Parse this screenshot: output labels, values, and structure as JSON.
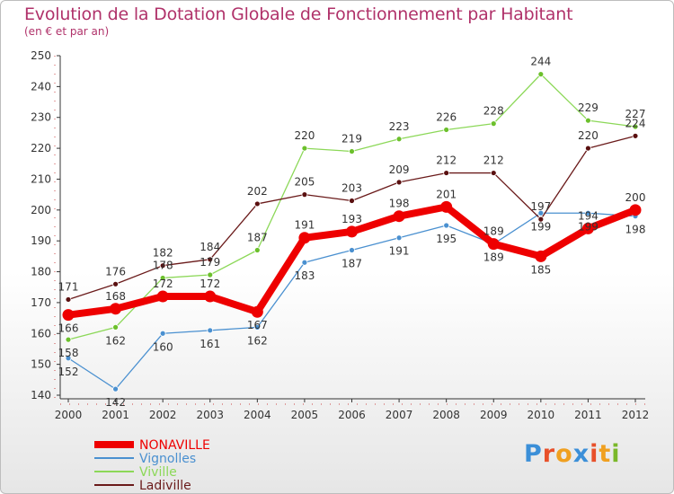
{
  "title": "Evolution de la Dotation Globale de Fonctionnement par Habitant",
  "subtitle": "(en € et par an)",
  "logo": {
    "text": "Proxiti",
    "letter_colors": [
      "#3b8fd8",
      "#e8502a",
      "#f0a020",
      "#3b8fd8",
      "#e8502a",
      "#f0a020",
      "#7ab82a"
    ]
  },
  "chart_data": {
    "type": "line",
    "title": "Evolution de la Dotation Globale de Fonctionnement par Habitant",
    "xlabel": "",
    "ylabel": "(en € et par an)",
    "x": [
      "2000",
      "2001",
      "2002",
      "2003",
      "2004",
      "2005",
      "2006",
      "2007",
      "2008",
      "2009",
      "2010",
      "2011",
      "2012"
    ],
    "ylim": [
      140,
      250
    ],
    "yticks": [
      "140",
      "150",
      "160",
      "170",
      "180",
      "190",
      "200",
      "210",
      "220",
      "230",
      "240",
      "250"
    ],
    "grid": false,
    "legend_position": "bottom-left",
    "series": [
      {
        "name": "NONAVILLE",
        "color": "#ee0000",
        "marker": "#ee0000",
        "bold": true,
        "values": [
          166,
          168,
          172,
          172,
          167,
          191,
          193,
          198,
          201,
          189,
          185,
          194,
          200
        ],
        "labels": [
          "166",
          "168",
          "172",
          "172",
          "167",
          "191",
          "193",
          "198",
          "201",
          "189",
          "185",
          "194",
          "200"
        ]
      },
      {
        "name": "Vignolles",
        "color": "#4a90d0",
        "marker": "#4a90d0",
        "bold": false,
        "values": [
          152,
          142,
          160,
          161,
          162,
          183,
          187,
          191,
          195,
          189,
          199,
          199,
          198
        ],
        "labels": [
          "152",
          "142",
          "160",
          "161",
          "162",
          "183",
          "187",
          "191",
          "195",
          "189",
          "199",
          "199",
          "198"
        ]
      },
      {
        "name": "Viville",
        "color": "#8cd858",
        "marker": "#6cc02c",
        "bold": false,
        "values": [
          158,
          162,
          178,
          179,
          187,
          220,
          219,
          223,
          226,
          228,
          244,
          229,
          227
        ],
        "labels": [
          "158",
          "162",
          "178",
          "179",
          "187",
          "220",
          "219",
          "223",
          "226",
          "228",
          "244",
          "229",
          "227"
        ]
      },
      {
        "name": "Ladiville",
        "color": "#6a1a1a",
        "marker": "#5a1010",
        "bold": false,
        "values": [
          171,
          176,
          182,
          184,
          202,
          205,
          203,
          209,
          212,
          212,
          197,
          220,
          224
        ],
        "labels": [
          "171",
          "176",
          "182",
          "184",
          "202",
          "205",
          "203",
          "209",
          "212",
          "212",
          "197",
          "220",
          "224"
        ]
      }
    ]
  }
}
